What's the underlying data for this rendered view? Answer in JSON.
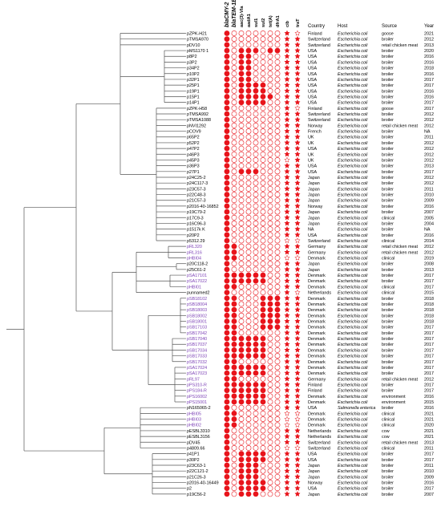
{
  "colors": {
    "filled": "#e8141b",
    "line": "#555555",
    "purple": "#7b3fb5",
    "text": "#000000"
  },
  "gene_headers": [
    "blaCMY-2",
    "blaTEM-1B",
    "aac(3)-VIa",
    "aadA1",
    "sul1",
    "sul2",
    "tet(A)",
    "dfrA1",
    "cib",
    "traT"
  ],
  "table_headers": {
    "country": "Country",
    "host": "Host",
    "source": "Source",
    "year": "Year"
  },
  "rows": [
    {
      "name": "pZPK-H21",
      "purple": false,
      "g": "10000000",
      "s": "10",
      "country": "Finland",
      "host": "Escherichia coli",
      "source": "goose",
      "year": "2021"
    },
    {
      "name": "pTMSA970",
      "purple": false,
      "g": "10000000",
      "s": "11",
      "country": "Switzerland",
      "host": "Escherichia coli",
      "source": "broiler",
      "year": "2012"
    },
    {
      "name": "pDV10",
      "purple": false,
      "g": "10000000",
      "s": "11",
      "country": "Switzerland",
      "host": "Escherichia coli",
      "source": "retail chicken meat",
      "year": "2013"
    },
    {
      "name": "pMS1170 1",
      "purple": false,
      "g": "10111011",
      "s": "11",
      "country": "USA",
      "host": "Escherichia coli",
      "source": "broiler",
      "year": "2020"
    },
    {
      "name": "p8P2",
      "purple": false,
      "g": "10110000",
      "s": "11",
      "country": "USA",
      "host": "Escherichia coli",
      "source": "broiler",
      "year": "2016"
    },
    {
      "name": "p3P2",
      "purple": false,
      "g": "10110000",
      "s": "11",
      "country": "USA",
      "host": "Escherichia coli",
      "source": "broiler",
      "year": "2016"
    },
    {
      "name": "p34P2",
      "purple": false,
      "g": "10110000",
      "s": "11",
      "country": "USA",
      "host": "Escherichia coli",
      "source": "broiler",
      "year": "2018"
    },
    {
      "name": "p10P2",
      "purple": false,
      "g": "10110000",
      "s": "11",
      "country": "USA",
      "host": "Escherichia coli",
      "source": "broiler",
      "year": "2016"
    },
    {
      "name": "p32P1",
      "purple": false,
      "g": "10110000",
      "s": "11",
      "country": "USA",
      "host": "Escherichia coli",
      "source": "broiler",
      "year": "2017"
    },
    {
      "name": "p25P1",
      "purple": false,
      "g": "10111100",
      "s": "11",
      "country": "USA",
      "host": "Escherichia coli",
      "source": "broiler",
      "year": "2017"
    },
    {
      "name": "p19P1",
      "purple": false,
      "g": "10111100",
      "s": "11",
      "country": "USA",
      "host": "Escherichia coli",
      "source": "broiler",
      "year": "2016"
    },
    {
      "name": "p15P1",
      "purple": false,
      "g": "10111110",
      "s": "11",
      "country": "USA",
      "host": "Escherichia coli",
      "source": "broiler",
      "year": "2016"
    },
    {
      "name": "p14P1",
      "purple": false,
      "g": "10111100",
      "s": "11",
      "country": "USA",
      "host": "Escherichia coli",
      "source": "broiler",
      "year": "2017"
    },
    {
      "name": "pZPK-H58",
      "purple": false,
      "g": "10000000",
      "s": "10",
      "country": "Finland",
      "host": "Escherichia coli",
      "source": "goose",
      "year": "2017"
    },
    {
      "name": "pTMSA992",
      "purple": false,
      "g": "10000000",
      "s": "11",
      "country": "Switzerland",
      "host": "Escherichia coli",
      "source": "broiler",
      "year": "2012"
    },
    {
      "name": "pTMSA1088",
      "purple": false,
      "g": "10000000",
      "s": "11",
      "country": "Switzerland",
      "host": "Escherichia coli",
      "source": "broiler",
      "year": "2012"
    },
    {
      "name": "pNVI1292",
      "purple": false,
      "g": "10000000",
      "s": "11",
      "country": "Norway",
      "host": "Escherichia coli",
      "source": "retail chicken meat",
      "year": "2012"
    },
    {
      "name": "pCOV9",
      "purple": false,
      "g": "10000000",
      "s": "11",
      "country": "French",
      "host": "Escherichia coli",
      "source": "broiler",
      "year": "NA"
    },
    {
      "name": "p65P2",
      "purple": false,
      "g": "10000000",
      "s": "11",
      "country": "UK",
      "host": "Escherichia coli",
      "source": "broiler",
      "year": "2011"
    },
    {
      "name": "p52P2",
      "purple": false,
      "g": "10000000",
      "s": "11",
      "country": "UK",
      "host": "Escherichia coli",
      "source": "broiler",
      "year": "2012"
    },
    {
      "name": "p47P2",
      "purple": false,
      "g": "10000000",
      "s": "11",
      "country": "USA",
      "host": "Escherichia coli",
      "source": "broiler",
      "year": "2012"
    },
    {
      "name": "p46P3",
      "purple": false,
      "g": "10000000",
      "s": "11",
      "country": "UK",
      "host": "Escherichia coli",
      "source": "broiler",
      "year": "2012"
    },
    {
      "name": "p45P3",
      "purple": false,
      "g": "10000000",
      "s": "01",
      "country": "UK",
      "host": "Escherichia coli",
      "source": "broiler",
      "year": "2012"
    },
    {
      "name": "p36P3",
      "purple": false,
      "g": "10000000",
      "s": "11",
      "country": "USA",
      "host": "Escherichia coli",
      "source": "broiler",
      "year": "2013"
    },
    {
      "name": "p27P1",
      "purple": false,
      "g": "10111000",
      "s": "11",
      "country": "USA",
      "host": "Escherichia coli",
      "source": "broiler",
      "year": "2017"
    },
    {
      "name": "p24C25-2",
      "purple": false,
      "g": "10000000",
      "s": "11",
      "country": "Japan",
      "host": "Escherichia coli",
      "source": "broiler",
      "year": "2012"
    },
    {
      "name": "p24C117-3",
      "purple": false,
      "g": "10000000",
      "s": "11",
      "country": "Japan",
      "host": "Escherichia coli",
      "source": "broiler",
      "year": "2012"
    },
    {
      "name": "p23C57-3",
      "purple": false,
      "g": "10000000",
      "s": "11",
      "country": "Japan",
      "host": "Escherichia coli",
      "source": "broiler",
      "year": "2011"
    },
    {
      "name": "p22C48-3",
      "purple": false,
      "g": "10000000",
      "s": "11",
      "country": "Japan",
      "host": "Escherichia coli",
      "source": "broiler",
      "year": "2010"
    },
    {
      "name": "p21C57-3",
      "purple": false,
      "g": "10000000",
      "s": "11",
      "country": "Japan",
      "host": "Escherichia coli",
      "source": "broiler",
      "year": "2009"
    },
    {
      "name": "p2016-40-16852",
      "purple": false,
      "g": "10000000",
      "s": "11",
      "country": "Norway",
      "host": "Escherichia coli",
      "source": "broiler",
      "year": "2016"
    },
    {
      "name": "p19C79-2",
      "purple": false,
      "g": "10000000",
      "s": "11",
      "country": "Japan",
      "host": "Escherichia coli",
      "source": "broiler",
      "year": "2007"
    },
    {
      "name": "p17C9-3",
      "purple": false,
      "g": "10000000",
      "s": "11",
      "country": "Japan",
      "host": "Escherichia coli",
      "source": "clinical",
      "year": "2005"
    },
    {
      "name": "p16C96-3",
      "purple": false,
      "g": "10000000",
      "s": "11",
      "country": "Japan",
      "host": "Escherichia coli",
      "source": "broiler",
      "year": "2004"
    },
    {
      "name": "p1517k K",
      "purple": false,
      "g": "10000000",
      "s": "11",
      "country": "NA",
      "host": "Escherichia coli",
      "source": "broiler",
      "year": "NA"
    },
    {
      "name": "p20P2",
      "purple": false,
      "g": "10000000",
      "s": "11",
      "country": "USA",
      "host": "Escherichia coli",
      "source": "broiler",
      "year": "2016"
    },
    {
      "name": "p5312.29",
      "purple": false,
      "g": "10000000",
      "s": "00",
      "country": "Switzerland",
      "host": "Escherichia coli",
      "source": "clinical",
      "year": "2014"
    },
    {
      "name": "pRL320",
      "purple": true,
      "g": "11000000",
      "s": "11",
      "country": "Germany",
      "host": "Escherichia coli",
      "source": "retail chicken meat",
      "year": "2012"
    },
    {
      "name": "pRL316",
      "purple": true,
      "g": "11000000",
      "s": "11",
      "country": "Germany",
      "host": "Escherichia coli",
      "source": "retail chicken meat",
      "year": "2012"
    },
    {
      "name": "pHBI04",
      "purple": true,
      "g": "11000000",
      "s": "00",
      "country": "Denmark",
      "host": "Escherichia coli",
      "source": "clinical",
      "year": "2019"
    },
    {
      "name": "p20C118-2",
      "purple": false,
      "g": "10000000",
      "s": "11",
      "country": "Japan",
      "host": "Escherichia coli",
      "source": "broiler",
      "year": "2008"
    },
    {
      "name": "p25C61-2",
      "purple": false,
      "g": "10000000",
      "s": "11",
      "country": "Japan",
      "host": "Escherichia coli",
      "source": "broiler",
      "year": "2013"
    },
    {
      "name": "pSA17101",
      "purple": true,
      "g": "11111100",
      "s": "11",
      "country": "Denmark",
      "host": "Escherichia coli",
      "source": "broiler",
      "year": "2017"
    },
    {
      "name": "pSA17022",
      "purple": true,
      "g": "11111100",
      "s": "11",
      "country": "Denmark",
      "host": "Escherichia coli",
      "source": "broiler",
      "year": "2017"
    },
    {
      "name": "pHBI01",
      "purple": true,
      "g": "11000000",
      "s": "11",
      "country": "Denmark",
      "host": "Escherichia coli",
      "source": "clinical",
      "year": "2017"
    },
    {
      "name": "punnamed2",
      "purple": false,
      "g": "10000000",
      "s": "10",
      "country": "Netherlands",
      "host": "Escherichia coli",
      "source": "clinical",
      "year": "2015"
    },
    {
      "name": "pSB18102",
      "purple": true,
      "g": "11000111",
      "s": "11",
      "country": "Denmark",
      "host": "Escherichia coli",
      "source": "broiler",
      "year": "2018"
    },
    {
      "name": "pSB18004",
      "purple": true,
      "g": "11000111",
      "s": "11",
      "country": "Denmark",
      "host": "Escherichia coli",
      "source": "broiler",
      "year": "2018"
    },
    {
      "name": "pSB18003",
      "purple": true,
      "g": "11000111",
      "s": "11",
      "country": "Denmark",
      "host": "Escherichia coli",
      "source": "broiler",
      "year": "2018"
    },
    {
      "name": "pSB18002",
      "purple": true,
      "g": "11000111",
      "s": "11",
      "country": "Denmark",
      "host": "Escherichia coli",
      "source": "broiler",
      "year": "2018"
    },
    {
      "name": "pSB18001",
      "purple": true,
      "g": "11000111",
      "s": "11",
      "country": "Denmark",
      "host": "Escherichia coli",
      "source": "broiler",
      "year": "2018"
    },
    {
      "name": "pSB17103",
      "purple": true,
      "g": "11000111",
      "s": "11",
      "country": "Denmark",
      "host": "Escherichia coli",
      "source": "broiler",
      "year": "2017"
    },
    {
      "name": "pSB17042",
      "purple": true,
      "g": "11000000",
      "s": "11",
      "country": "Denmark",
      "host": "Escherichia coli",
      "source": "broiler",
      "year": "2017"
    },
    {
      "name": "pSB17040",
      "purple": true,
      "g": "11111100",
      "s": "11",
      "country": "Denmark",
      "host": "Escherichia coli",
      "source": "broiler",
      "year": "2017"
    },
    {
      "name": "pSB17037",
      "purple": true,
      "g": "11111100",
      "s": "11",
      "country": "Denmark",
      "host": "Escherichia coli",
      "source": "broiler",
      "year": "2017"
    },
    {
      "name": "pSB17034",
      "purple": true,
      "g": "11111100",
      "s": "11",
      "country": "Denmark",
      "host": "Escherichia coli",
      "source": "broiler",
      "year": "2017"
    },
    {
      "name": "pSB17033",
      "purple": true,
      "g": "11111100",
      "s": "11",
      "country": "Denmark",
      "host": "Escherichia coli",
      "source": "broiler",
      "year": "2017"
    },
    {
      "name": "pSB17032",
      "purple": true,
      "g": "11000000",
      "s": "11",
      "country": "Denmark",
      "host": "Escherichia coli",
      "source": "broiler",
      "year": "2017"
    },
    {
      "name": "pSA17024",
      "purple": true,
      "g": "11111100",
      "s": "11",
      "country": "Denmark",
      "host": "Escherichia coli",
      "source": "broiler",
      "year": "2017"
    },
    {
      "name": "pSA17023",
      "purple": true,
      "g": "11111100",
      "s": "11",
      "country": "Denmark",
      "host": "Escherichia coli",
      "source": "broiler",
      "year": "2017"
    },
    {
      "name": "pRL97",
      "purple": true,
      "g": "11000000",
      "s": "11",
      "country": "Germany",
      "host": "Escherichia coli",
      "source": "retail chicken meat",
      "year": "2012"
    },
    {
      "name": "pPS310-R",
      "purple": true,
      "g": "11111100",
      "s": "11",
      "country": "Finland",
      "host": "Escherichia coli",
      "source": "broiler",
      "year": "2017"
    },
    {
      "name": "pPS184-R",
      "purple": true,
      "g": "11111100",
      "s": "11",
      "country": "Finland",
      "host": "Escherichia coli",
      "source": "broiler",
      "year": "2017"
    },
    {
      "name": "pPS16002",
      "purple": true,
      "g": "11111100",
      "s": "11",
      "country": "Denmark",
      "host": "Escherichia coli",
      "source": "environment",
      "year": "2016"
    },
    {
      "name": "pPS15001",
      "purple": true,
      "g": "11111100",
      "s": "11",
      "country": "Denmark",
      "host": "Escherichia coli",
      "source": "environment",
      "year": "2015"
    },
    {
      "name": "pN165065-2",
      "purple": false,
      "g": "10000000",
      "s": "11",
      "country": "USA",
      "host": "Salmonella enterica",
      "source": "broiler",
      "year": "2016"
    },
    {
      "name": "pHBI05",
      "purple": true,
      "g": "11000000",
      "s": "00",
      "country": "Denmark",
      "host": "Escherichia coli",
      "source": "clinical",
      "year": "2021"
    },
    {
      "name": "pHBI03",
      "purple": true,
      "g": "11000000",
      "s": "00",
      "country": "Denmark",
      "host": "Escherichia coli",
      "source": "clinical",
      "year": "2021"
    },
    {
      "name": "pHBI02",
      "purple": true,
      "g": "11000000",
      "s": "00",
      "country": "Denmark",
      "host": "Escherichia coli",
      "source": "clinical",
      "year": "2020"
    },
    {
      "name": "pESBL3310",
      "purple": false,
      "g": "10000000",
      "s": "11",
      "country": "Netherlands",
      "host": "Escherichia coli",
      "source": "cow",
      "year": "2021"
    },
    {
      "name": "pESBL3156",
      "purple": false,
      "g": "10000000",
      "s": "11",
      "country": "Netherlands",
      "host": "Escherichia coli",
      "source": "cow",
      "year": "2021"
    },
    {
      "name": "pDV45",
      "purple": false,
      "g": "10000000",
      "s": "11",
      "country": "Switzerland",
      "host": "Escherichia coli",
      "source": "retail chicken meat",
      "year": "2013"
    },
    {
      "name": "p4809.66",
      "purple": false,
      "g": "10000000",
      "s": "00",
      "country": "Switzerland",
      "host": "Escherichia coli",
      "source": "clinical",
      "year": "2011"
    },
    {
      "name": "p41P1",
      "purple": false,
      "g": "10111100",
      "s": "11",
      "country": "USA",
      "host": "Escherichia coli",
      "source": "broiler",
      "year": "2017"
    },
    {
      "name": "p30P2",
      "purple": false,
      "g": "10111100",
      "s": "11",
      "country": "USA",
      "host": "Escherichia coli",
      "source": "broiler",
      "year": "2017"
    },
    {
      "name": "p23C63-1",
      "purple": false,
      "g": "10111000",
      "s": "11",
      "country": "Japan",
      "host": "Escherichia coli",
      "source": "broiler",
      "year": "2011"
    },
    {
      "name": "p22C121-2",
      "purple": false,
      "g": "10111000",
      "s": "11",
      "country": "Japan",
      "host": "Escherichia coli",
      "source": "broiler",
      "year": "2010"
    },
    {
      "name": "p21C26-3",
      "purple": false,
      "g": "10111000",
      "s": "11",
      "country": "Japan",
      "host": "Escherichia coli",
      "source": "broiler",
      "year": "2009"
    },
    {
      "name": "p2016-40-16449",
      "purple": false,
      "g": "10111100",
      "s": "11",
      "country": "Norway",
      "host": "Escherichia coli",
      "source": "broiler",
      "year": "2016"
    },
    {
      "name": "p2",
      "purple": false,
      "g": "10111100",
      "s": "11",
      "country": "USA",
      "host": "Escherichia coli",
      "source": "broiler",
      "year": "2017"
    },
    {
      "name": "p19C56-2",
      "purple": false,
      "g": "10111000",
      "s": "11",
      "country": "Japan",
      "host": "Escherichia coli",
      "source": "broiler",
      "year": "2007"
    }
  ]
}
